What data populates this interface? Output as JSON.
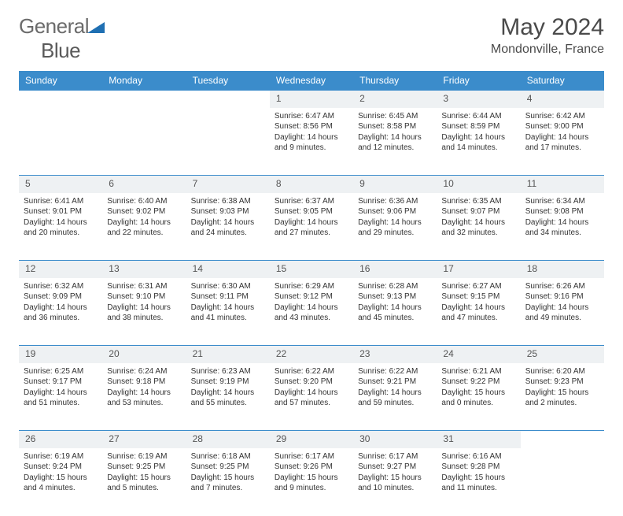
{
  "brand": {
    "part1": "General",
    "part2": "Blue"
  },
  "title": "May 2024",
  "location": "Mondonville, France",
  "colors": {
    "header_bg": "#3b8ccb",
    "header_fg": "#ffffff",
    "daynum_bg": "#eef1f3",
    "border": "#3b8ccb",
    "text": "#333333",
    "logo_gray": "#6b6b6b",
    "logo_blue": "#1f6fb2"
  },
  "weekdays": [
    "Sunday",
    "Monday",
    "Tuesday",
    "Wednesday",
    "Thursday",
    "Friday",
    "Saturday"
  ],
  "weeks": [
    {
      "nums": [
        "",
        "",
        "",
        "1",
        "2",
        "3",
        "4"
      ],
      "cells": [
        null,
        null,
        null,
        {
          "sunrise": "6:47 AM",
          "sunset": "8:56 PM",
          "daylight": "14 hours and 9 minutes."
        },
        {
          "sunrise": "6:45 AM",
          "sunset": "8:58 PM",
          "daylight": "14 hours and 12 minutes."
        },
        {
          "sunrise": "6:44 AM",
          "sunset": "8:59 PM",
          "daylight": "14 hours and 14 minutes."
        },
        {
          "sunrise": "6:42 AM",
          "sunset": "9:00 PM",
          "daylight": "14 hours and 17 minutes."
        }
      ]
    },
    {
      "nums": [
        "5",
        "6",
        "7",
        "8",
        "9",
        "10",
        "11"
      ],
      "cells": [
        {
          "sunrise": "6:41 AM",
          "sunset": "9:01 PM",
          "daylight": "14 hours and 20 minutes."
        },
        {
          "sunrise": "6:40 AM",
          "sunset": "9:02 PM",
          "daylight": "14 hours and 22 minutes."
        },
        {
          "sunrise": "6:38 AM",
          "sunset": "9:03 PM",
          "daylight": "14 hours and 24 minutes."
        },
        {
          "sunrise": "6:37 AM",
          "sunset": "9:05 PM",
          "daylight": "14 hours and 27 minutes."
        },
        {
          "sunrise": "6:36 AM",
          "sunset": "9:06 PM",
          "daylight": "14 hours and 29 minutes."
        },
        {
          "sunrise": "6:35 AM",
          "sunset": "9:07 PM",
          "daylight": "14 hours and 32 minutes."
        },
        {
          "sunrise": "6:34 AM",
          "sunset": "9:08 PM",
          "daylight": "14 hours and 34 minutes."
        }
      ]
    },
    {
      "nums": [
        "12",
        "13",
        "14",
        "15",
        "16",
        "17",
        "18"
      ],
      "cells": [
        {
          "sunrise": "6:32 AM",
          "sunset": "9:09 PM",
          "daylight": "14 hours and 36 minutes."
        },
        {
          "sunrise": "6:31 AM",
          "sunset": "9:10 PM",
          "daylight": "14 hours and 38 minutes."
        },
        {
          "sunrise": "6:30 AM",
          "sunset": "9:11 PM",
          "daylight": "14 hours and 41 minutes."
        },
        {
          "sunrise": "6:29 AM",
          "sunset": "9:12 PM",
          "daylight": "14 hours and 43 minutes."
        },
        {
          "sunrise": "6:28 AM",
          "sunset": "9:13 PM",
          "daylight": "14 hours and 45 minutes."
        },
        {
          "sunrise": "6:27 AM",
          "sunset": "9:15 PM",
          "daylight": "14 hours and 47 minutes."
        },
        {
          "sunrise": "6:26 AM",
          "sunset": "9:16 PM",
          "daylight": "14 hours and 49 minutes."
        }
      ]
    },
    {
      "nums": [
        "19",
        "20",
        "21",
        "22",
        "23",
        "24",
        "25"
      ],
      "cells": [
        {
          "sunrise": "6:25 AM",
          "sunset": "9:17 PM",
          "daylight": "14 hours and 51 minutes."
        },
        {
          "sunrise": "6:24 AM",
          "sunset": "9:18 PM",
          "daylight": "14 hours and 53 minutes."
        },
        {
          "sunrise": "6:23 AM",
          "sunset": "9:19 PM",
          "daylight": "14 hours and 55 minutes."
        },
        {
          "sunrise": "6:22 AM",
          "sunset": "9:20 PM",
          "daylight": "14 hours and 57 minutes."
        },
        {
          "sunrise": "6:22 AM",
          "sunset": "9:21 PM",
          "daylight": "14 hours and 59 minutes."
        },
        {
          "sunrise": "6:21 AM",
          "sunset": "9:22 PM",
          "daylight": "15 hours and 0 minutes."
        },
        {
          "sunrise": "6:20 AM",
          "sunset": "9:23 PM",
          "daylight": "15 hours and 2 minutes."
        }
      ]
    },
    {
      "nums": [
        "26",
        "27",
        "28",
        "29",
        "30",
        "31",
        ""
      ],
      "cells": [
        {
          "sunrise": "6:19 AM",
          "sunset": "9:24 PM",
          "daylight": "15 hours and 4 minutes."
        },
        {
          "sunrise": "6:19 AM",
          "sunset": "9:25 PM",
          "daylight": "15 hours and 5 minutes."
        },
        {
          "sunrise": "6:18 AM",
          "sunset": "9:25 PM",
          "daylight": "15 hours and 7 minutes."
        },
        {
          "sunrise": "6:17 AM",
          "sunset": "9:26 PM",
          "daylight": "15 hours and 9 minutes."
        },
        {
          "sunrise": "6:17 AM",
          "sunset": "9:27 PM",
          "daylight": "15 hours and 10 minutes."
        },
        {
          "sunrise": "6:16 AM",
          "sunset": "9:28 PM",
          "daylight": "15 hours and 11 minutes."
        },
        null
      ]
    }
  ],
  "labels": {
    "sunrise": "Sunrise:",
    "sunset": "Sunset:",
    "daylight": "Daylight:"
  }
}
